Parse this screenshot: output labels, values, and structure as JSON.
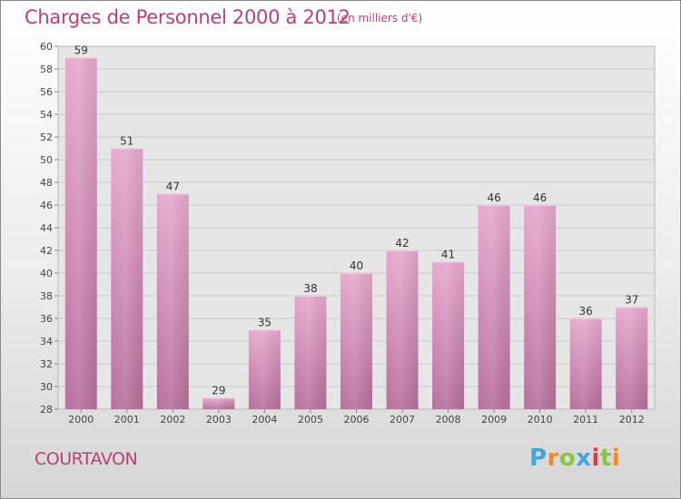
{
  "title": "Charges de Personnel 2000 à 2012",
  "subtitle": "(en milliers d'€)",
  "commune": "COURTAVON",
  "logo": {
    "text": "Proxiti",
    "letters": [
      "P",
      "r",
      "o",
      "x",
      "i",
      "t",
      "i"
    ],
    "colors": [
      "#3fa7dd",
      "#f28c1e",
      "#8cc63f",
      "#3fa7dd",
      "#e23a3a",
      "#8cc63f",
      "#f28c1e"
    ]
  },
  "chart_data": {
    "type": "bar",
    "categories": [
      "2000",
      "2001",
      "2002",
      "2003",
      "2004",
      "2005",
      "2006",
      "2007",
      "2008",
      "2009",
      "2010",
      "2011",
      "2012"
    ],
    "values": [
      59,
      51,
      47,
      29,
      35,
      38,
      40,
      42,
      41,
      46,
      46,
      36,
      37
    ],
    "ylim": [
      28,
      60
    ],
    "yticks": [
      28,
      30,
      32,
      34,
      36,
      38,
      40,
      42,
      44,
      46,
      48,
      50,
      52,
      54,
      56,
      58,
      60
    ],
    "grid": true,
    "bar_color": "#d88bb9",
    "accent_color": "#b8407a"
  }
}
